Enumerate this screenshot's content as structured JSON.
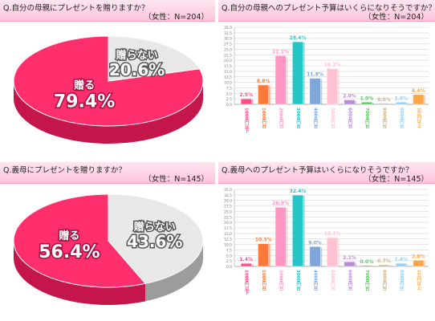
{
  "chart_data": [
    {
      "type": "pie",
      "title": "Q.自分の母親にプレゼントを贈りますか？",
      "note": "（女性：N=204）",
      "slices": [
        {
          "label": "贈る",
          "value": 79.4,
          "pct": "79.4%"
        },
        {
          "label": "贈らない",
          "value": 20.6,
          "pct": "20.6%"
        }
      ]
    },
    {
      "type": "bar",
      "title": "Q.自分の母親へのプレゼント予算はいくらになりそうですか？",
      "note": "（女性：N=204）",
      "ylim": [
        0,
        35
      ],
      "ticks": [
        "0.0",
        "2.5",
        "5.0",
        "7.5",
        "10.0",
        "12.5",
        "15.0",
        "17.5",
        "20.0",
        "22.5",
        "25.0",
        "27.5",
        "30.0",
        "32.5",
        "35.0"
      ],
      "categories": [
        "1000円以下",
        "1000円台",
        "2000円台",
        "3000円台",
        "4000円台",
        "5000円台",
        "6000円台",
        "7000円台",
        "8000円台",
        "9000円台",
        "1万円以上"
      ],
      "values": [
        2.5,
        8.8,
        22.1,
        28.4,
        11.8,
        16.2,
        2.0,
        1.0,
        0.0,
        1.0,
        4.4
      ],
      "labels": [
        "2.5%",
        "8.8%",
        "22.1%",
        "28.4%",
        "11.8%",
        "16.2%",
        "2.0%",
        "1.0%",
        "0.0%",
        "1.0%",
        "4.4%"
      ],
      "colors": [
        "#ff4d87",
        "#ff7a3a",
        "#ff97c2",
        "#25c6c8",
        "#7ea6d6",
        "#ffc2d2",
        "#b98ad8",
        "#55c95a",
        "#c9b07f",
        "#8fd0f4",
        "#ffa545"
      ]
    },
    {
      "type": "pie",
      "title": "Q.義母にプレゼントを贈りますか？",
      "note": "（女性：N=145）",
      "slices": [
        {
          "label": "贈る",
          "value": 56.4,
          "pct": "56.4%"
        },
        {
          "label": "贈らない",
          "value": 43.6,
          "pct": "43.6%"
        }
      ]
    },
    {
      "type": "bar",
      "title": "Q.義母へのプレゼント予算はいくらになりそうですか？",
      "note": "（女性：N=145）",
      "ylim": [
        0,
        35
      ],
      "ticks": [
        "0.0",
        "2.5",
        "5.0",
        "7.5",
        "10.0",
        "12.5",
        "15.0",
        "17.5",
        "20.0",
        "22.5",
        "25.0",
        "27.5",
        "30.0",
        "32.5",
        "35.0"
      ],
      "categories": [
        "1000円以下",
        "1000円台",
        "2000円台",
        "3000円台",
        "4000円台",
        "5000円台",
        "6000円台",
        "7000円台",
        "8000円台",
        "9000円台",
        "1万円以上"
      ],
      "values": [
        1.4,
        10.3,
        26.9,
        32.4,
        9.0,
        13.1,
        2.1,
        0.0,
        0.7,
        1.4,
        2.8
      ],
      "labels": [
        "1.4%",
        "10.3%",
        "26.9%",
        "32.4%",
        "9.0%",
        "13.1%",
        "2.1%",
        "0.0%",
        "0.7%",
        "1.4%",
        "2.8%"
      ],
      "colors": [
        "#ff4d87",
        "#ff7a3a",
        "#ff97c2",
        "#25c6c8",
        "#7ea6d6",
        "#ffc2d2",
        "#b98ad8",
        "#55c95a",
        "#c9b07f",
        "#8fd0f4",
        "#ffa545"
      ]
    }
  ],
  "colors": {
    "pie_main": "#ff2f6d",
    "pie_main_side": "#c4164a",
    "pie_other": "#e8e8e8",
    "pie_other_side": "#9c9c9c",
    "header_bg": "#ffd3e5"
  }
}
